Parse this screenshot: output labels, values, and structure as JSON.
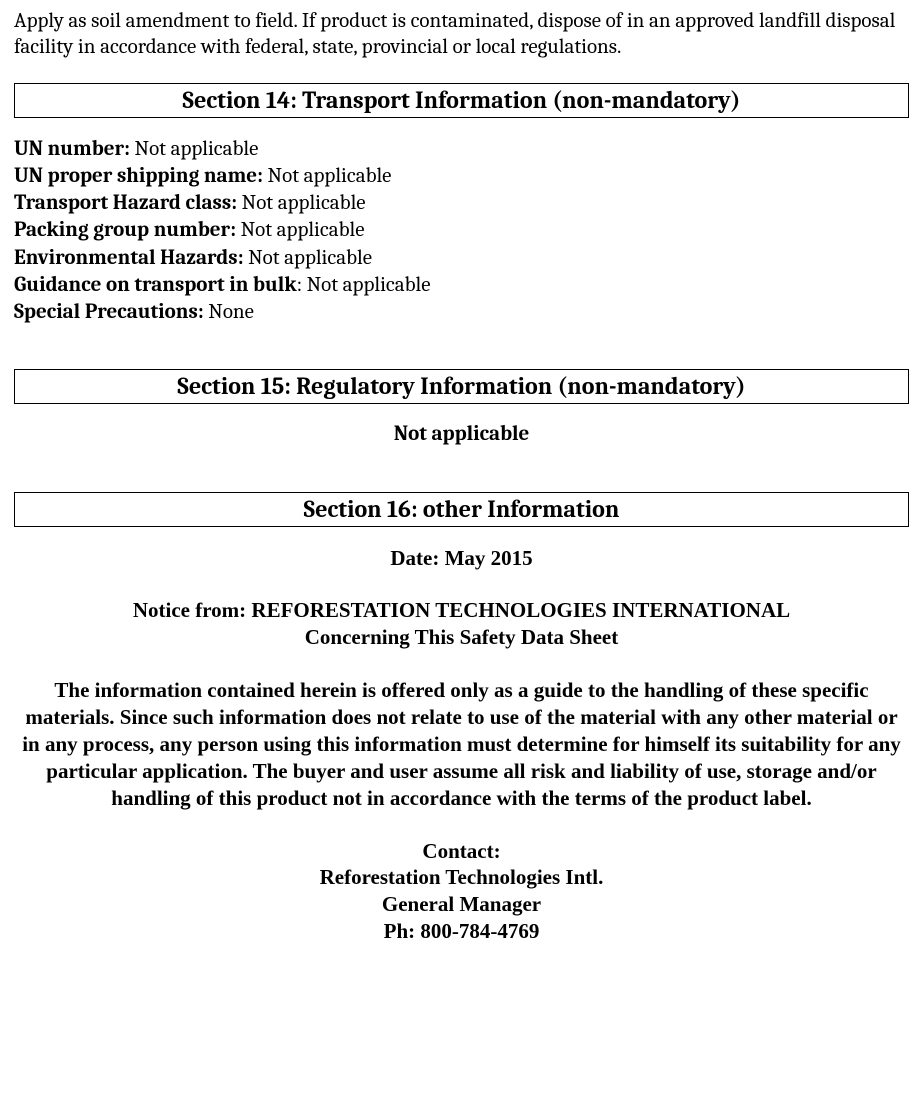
{
  "intro": "Apply as soil amendment to field. If product is contaminated, dispose of in an approved landfill disposal facility in accordance with federal, state, provincial or local regulations.",
  "section14": {
    "title": "Section 14: Transport Information (non-mandatory)",
    "fields": {
      "un_number": {
        "label": "UN number:",
        "value": " Not applicable"
      },
      "proper_shipping": {
        "label": "UN proper shipping name:",
        "value": " Not applicable"
      },
      "hazard_class": {
        "label": "Transport Hazard class:",
        "value": " Not applicable"
      },
      "packing_group": {
        "label": "Packing group number:",
        "value": " Not applicable"
      },
      "env_hazards": {
        "label": "Environmental Hazards:",
        "value": " Not applicable"
      },
      "bulk_guidance": {
        "label": "Guidance on transport in bulk",
        "value": ": Not applicable"
      },
      "special_precautions": {
        "label": "Special Precautions:",
        "value": " None"
      }
    }
  },
  "section15": {
    "title": "Section 15: Regulatory Information (non-mandatory)",
    "body": "Not applicable"
  },
  "section16": {
    "title": "Section 16: other Information",
    "date": "Date: May 2015",
    "notice_line1": "Notice from: REFORESTATION TECHNOLOGIES INTERNATIONAL",
    "notice_line2": "Concerning This Safety Data Sheet",
    "disclaimer": "The information contained herein is offered only as a guide to the handling of these specific materials. Since such information does not relate to use of the material with any other material or in any process, any person using this information must determine for himself its suitability for any particular application. The buyer and user assume all risk and liability of use, storage and/or handling of this product not in accordance with the terms of the product label.",
    "contact": {
      "heading": "Contact:",
      "company": "Reforestation Technologies Intl.",
      "role": "General Manager",
      "phone": "Ph: 800-784-4769"
    }
  }
}
